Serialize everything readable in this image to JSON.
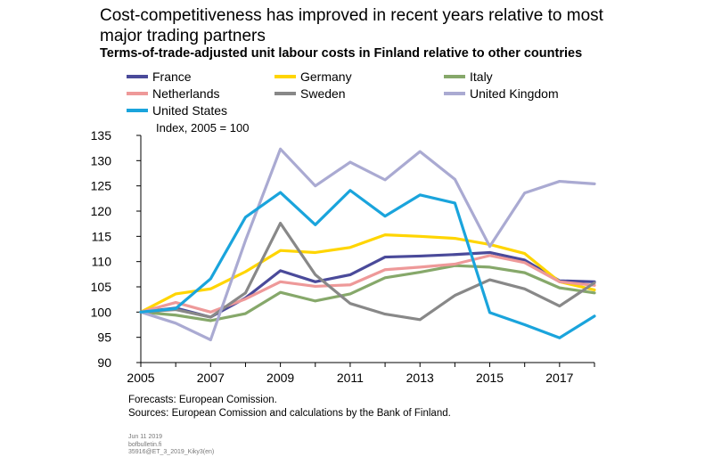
{
  "header": {
    "title": "Cost-competitiveness has improved in recent years relative to most major trading partners",
    "subtitle": "Terms-of-trade-adjusted unit labour costs in Finland relative to other countries"
  },
  "chart_data": {
    "type": "line",
    "ylabel": "Index, 2005 = 100",
    "ylim": [
      90,
      135
    ],
    "yticks": [
      90,
      95,
      100,
      105,
      110,
      115,
      120,
      125,
      130,
      135
    ],
    "xlim": [
      2005,
      2018
    ],
    "xticks": [
      2005,
      2007,
      2009,
      2011,
      2013,
      2015,
      2017
    ],
    "grid": false,
    "legend_position": "top",
    "x": [
      2005,
      2006,
      2007,
      2008,
      2009,
      2010,
      2011,
      2012,
      2013,
      2014,
      2015,
      2016,
      2017,
      2018
    ],
    "series": [
      {
        "name": "France",
        "color": "#4a4a9a",
        "values": [
          100,
          100.8,
          99.0,
          102.8,
          108.2,
          106.0,
          107.4,
          110.9,
          111.1,
          111.4,
          111.8,
          110.3,
          106.2,
          106.0
        ]
      },
      {
        "name": "Germany",
        "color": "#ffd500",
        "values": [
          100,
          103.6,
          104.6,
          108.0,
          112.2,
          111.8,
          112.8,
          115.3,
          115.0,
          114.6,
          113.4,
          111.6,
          106.0,
          104.4
        ]
      },
      {
        "name": "Italy",
        "color": "#86a86a",
        "values": [
          100,
          99.4,
          98.3,
          99.7,
          103.9,
          102.2,
          103.6,
          106.8,
          107.9,
          109.2,
          108.9,
          107.8,
          104.8,
          103.8
        ]
      },
      {
        "name": "Netherlands",
        "color": "#ee9999",
        "values": [
          100,
          101.9,
          100.0,
          102.6,
          106.0,
          105.1,
          105.4,
          108.4,
          108.9,
          109.5,
          111.2,
          109.8,
          106.0,
          105.3
        ]
      },
      {
        "name": "Sweden",
        "color": "#888888",
        "values": [
          100,
          100.5,
          99.0,
          103.8,
          117.6,
          107.4,
          101.7,
          99.6,
          98.5,
          103.3,
          106.4,
          104.6,
          101.2,
          105.8
        ]
      },
      {
        "name": "United Kingdom",
        "color": "#aaaad2",
        "values": [
          100,
          97.8,
          94.5,
          114.2,
          132.3,
          125.0,
          129.7,
          126.2,
          131.8,
          126.3,
          113.0,
          123.6,
          125.9,
          125.4
        ]
      },
      {
        "name": "United States",
        "color": "#1aa4dc",
        "values": [
          100,
          100.7,
          106.6,
          118.8,
          123.7,
          117.3,
          124.1,
          119.0,
          123.2,
          121.6,
          99.9,
          97.5,
          94.9,
          99.2
        ]
      }
    ]
  },
  "footer": {
    "forecast_note": "Forecasts: European Comission.",
    "source_note": "Sources: European Comission and calculations by the Bank of Finland.",
    "date": "Jun 11 2019",
    "site": "bofbulletin.fi",
    "code": "35916@ET_3_2019_Kiky3(en)"
  }
}
